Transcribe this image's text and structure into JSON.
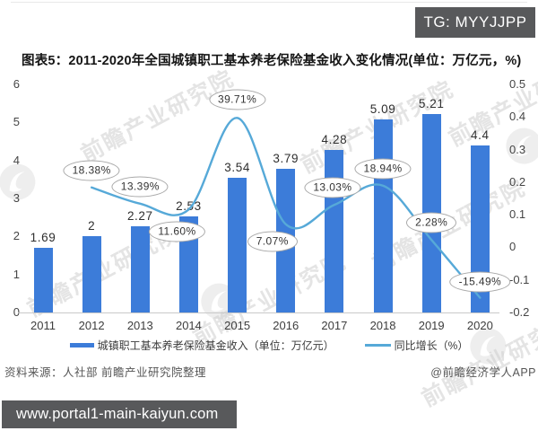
{
  "badge": {
    "text": "TG: MYYJJPP",
    "bg": "#58595b",
    "fg": "#ffffff"
  },
  "title": "图表5：2011-2020年全国城镇职工基本养老保险基金收入变化情况(单位：万亿元，%)",
  "chart_data": {
    "type": "bar+line",
    "categories": [
      "2011",
      "2012",
      "2013",
      "2014",
      "2015",
      "2016",
      "2017",
      "2018",
      "2019",
      "2020"
    ],
    "series": [
      {
        "name": "城镇职工基本养老保险基金收入（单位：万亿元）",
        "type": "bar",
        "axis": "left",
        "color": "#3c7cd9",
        "values": [
          1.69,
          2,
          2.27,
          2.53,
          3.54,
          3.79,
          4.28,
          5.09,
          5.21,
          4.4
        ],
        "labels": [
          "1.69",
          "2",
          "2.27",
          "2.53",
          "3.54",
          "3.79",
          "4.28",
          "5.09",
          "5.21",
          "4.4"
        ]
      },
      {
        "name": "同比增长（%）",
        "type": "line",
        "axis": "right",
        "color": "#56a9d8",
        "values_pct": [
          null,
          18.38,
          13.39,
          11.6,
          39.71,
          7.07,
          13.03,
          18.94,
          2.28,
          -15.49
        ],
        "labels": [
          null,
          "18.38%",
          "13.39%",
          "11.60%",
          "39.71%",
          "7.07%",
          "13.03%",
          "18.94%",
          "2.28%",
          "-15.49%"
        ],
        "label_offsets": [
          null,
          [
            0,
            -19
          ],
          [
            0,
            -19
          ],
          [
            -13,
            25
          ],
          [
            0,
            -20
          ],
          [
            -15,
            19
          ],
          [
            -2,
            -19
          ],
          [
            0,
            -19
          ],
          [
            0,
            -19
          ],
          [
            0,
            -18
          ]
        ]
      }
    ],
    "left_axis": {
      "min": 0,
      "max": 6,
      "ticks": [
        "6",
        "5",
        "4",
        "3",
        "2",
        "1",
        "0"
      ]
    },
    "right_axis": {
      "min": -0.2,
      "max": 0.5,
      "ticks": [
        "0.5",
        "0.4",
        "0.3",
        "0.2",
        "0.1",
        "0",
        "-0.1",
        "-0.2"
      ]
    },
    "grid": false,
    "legend_position": "bottom"
  },
  "legend": [
    {
      "label": "城镇职工基本养老保险基金收入（单位：万亿元）",
      "marker": "bar",
      "color": "#3c7cd9"
    },
    {
      "label": "同比增长（%）",
      "marker": "line",
      "color": "#56a9d8"
    }
  ],
  "source_left": "资料来源：人社部 前瞻产业研究院整理",
  "source_right": "@前瞻经济学人APP",
  "watermark": {
    "text": "前瞻产业研究院"
  },
  "footer": {
    "url": "www.portal1-main-kaiyun.com",
    "bg": "#58595b",
    "fg": "#ffffff"
  }
}
